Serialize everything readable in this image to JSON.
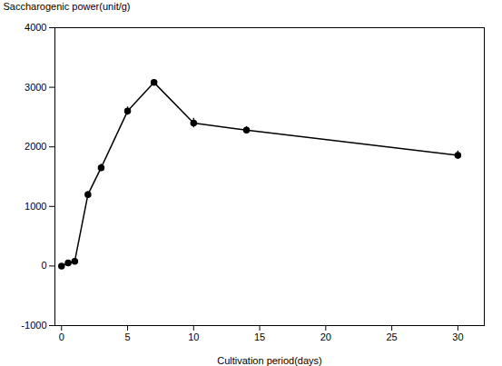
{
  "chart_data": {
    "type": "line",
    "x": [
      0,
      0.5,
      1,
      2,
      3,
      5,
      7,
      10,
      14,
      30
    ],
    "values": [
      0,
      50,
      80,
      1200,
      1650,
      2600,
      3080,
      2400,
      2280,
      1860
    ],
    "yerr": [
      10,
      30,
      25,
      50,
      60,
      70,
      40,
      80,
      60,
      70
    ],
    "xlabel": "Cultivation period(days)",
    "ylabel": "Saccharogenic power(unit/g)",
    "xlim": [
      -0.5,
      32
    ],
    "ylim": [
      -1000,
      4000
    ],
    "xticks": [
      0,
      5,
      10,
      15,
      20,
      25,
      30
    ],
    "yticks": [
      -1000,
      0,
      1000,
      2000,
      3000,
      4000
    ],
    "color": "#000000",
    "marker": "circle",
    "line_style": "solid",
    "grid": false
  }
}
